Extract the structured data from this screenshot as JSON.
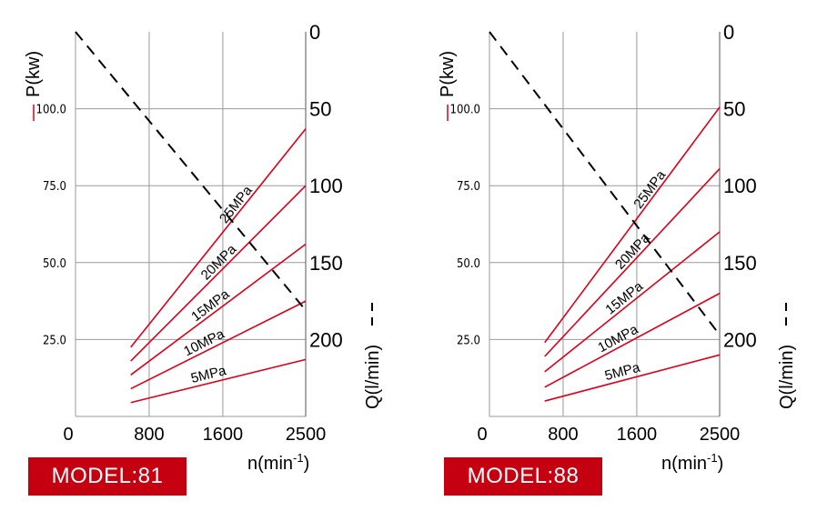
{
  "colors": {
    "power_line": "#d8001b",
    "flow_line": "#000000",
    "grid": "#9a9a9a",
    "badge": "#c40011"
  },
  "shared": {
    "p_axis_label": "P(kw)",
    "q_axis_label": "Q(l/min)",
    "n_axis_label": "n(min",
    "n_axis_sup": "-1",
    "n_axis_close": ")",
    "origin_label": "0",
    "x_ticks": [
      "0",
      "800",
      "1600",
      "2500"
    ],
    "p_ticks": [
      "100.0",
      "75.0",
      "50.0",
      "25.0"
    ],
    "q_ticks": [
      "0",
      "50",
      "100",
      "150",
      "200"
    ]
  },
  "chart_data": [
    {
      "type": "line",
      "model_label": "MODEL:81",
      "xlabel": "n(min-1)",
      "ylabel": "P(kw)",
      "y2label": "Q(l/min)",
      "xlim": [
        0,
        2500
      ],
      "ylim": [
        0,
        125
      ],
      "y2lim_inverted": [
        0,
        250
      ],
      "power_series": [
        {
          "name": "25MPa",
          "x": [
            600,
            2500
          ],
          "y": [
            22.5,
            93.5
          ]
        },
        {
          "name": "20MPa",
          "x": [
            600,
            2500
          ],
          "y": [
            18,
            75
          ]
        },
        {
          "name": "15MPa",
          "x": [
            600,
            2500
          ],
          "y": [
            13.5,
            56
          ]
        },
        {
          "name": "10MPa",
          "x": [
            600,
            2500
          ],
          "y": [
            9,
            37.5
          ]
        },
        {
          "name": "5MPa",
          "x": [
            600,
            2500
          ],
          "y": [
            4.5,
            18.5
          ]
        }
      ],
      "flow_series": {
        "x": [
          0,
          2500
        ],
        "y": [
          0,
          181
        ]
      }
    },
    {
      "type": "line",
      "model_label": "MODEL:88",
      "xlabel": "n(min-1)",
      "ylabel": "P(kw)",
      "y2label": "Q(l/min)",
      "xlim": [
        0,
        2500
      ],
      "ylim": [
        0,
        125
      ],
      "y2lim_inverted": [
        0,
        250
      ],
      "power_series": [
        {
          "name": "25MPa",
          "x": [
            600,
            2500
          ],
          "y": [
            24,
            100.5
          ]
        },
        {
          "name": "20MPa",
          "x": [
            600,
            2500
          ],
          "y": [
            19.5,
            80.5
          ]
        },
        {
          "name": "15MPa",
          "x": [
            600,
            2500
          ],
          "y": [
            14.5,
            60
          ]
        },
        {
          "name": "10MPa",
          "x": [
            600,
            2500
          ],
          "y": [
            9.5,
            40
          ]
        },
        {
          "name": "5MPa",
          "x": [
            600,
            2500
          ],
          "y": [
            5,
            20
          ]
        }
      ],
      "flow_series": {
        "x": [
          0,
          2500
        ],
        "y": [
          0,
          197
        ]
      }
    }
  ]
}
